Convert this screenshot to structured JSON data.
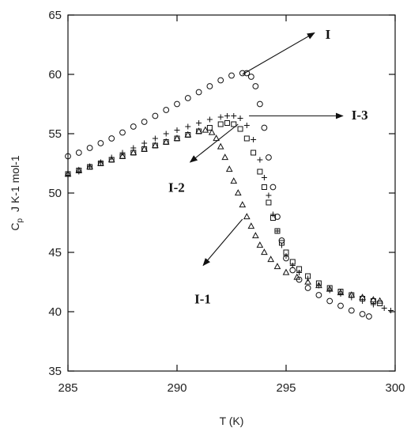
{
  "chart_data": {
    "type": "scatter",
    "xlabel": "T (K)",
    "ylabel_main": "C",
    "ylabel_sub": "p",
    "ylabel_units": "J K-1 mol-1",
    "xlim": [
      285,
      300
    ],
    "ylim": [
      35,
      65
    ],
    "xticks": [
      "285",
      "290",
      "295",
      "300"
    ],
    "yticks": [
      "35",
      "40",
      "45",
      "50",
      "55",
      "60",
      "65"
    ],
    "grid": false,
    "series": [
      {
        "name": "I",
        "marker": "circle",
        "x": [
          285.0,
          285.5,
          286.0,
          286.5,
          287.0,
          287.5,
          288.0,
          288.5,
          289.0,
          289.5,
          290.0,
          290.5,
          291.0,
          291.5,
          292.0,
          292.5,
          293.0,
          293.2,
          293.4,
          293.6,
          293.8,
          294.0,
          294.2,
          294.4,
          294.6,
          294.8,
          295.0,
          295.3,
          295.6,
          296.0,
          296.5,
          297.0,
          297.5,
          298.0,
          298.5,
          298.8
        ],
        "y": [
          53.1,
          53.4,
          53.8,
          54.2,
          54.6,
          55.1,
          55.6,
          56.0,
          56.5,
          57.0,
          57.5,
          58.0,
          58.5,
          59.0,
          59.5,
          59.9,
          60.1,
          60.1,
          59.8,
          59.0,
          57.5,
          55.5,
          53.0,
          50.5,
          48.0,
          46.0,
          44.5,
          43.5,
          42.7,
          42.0,
          41.4,
          40.9,
          40.5,
          40.1,
          39.8,
          39.6
        ]
      },
      {
        "name": "I-1",
        "marker": "triangle",
        "x": [
          285.0,
          285.5,
          286.0,
          286.5,
          287.0,
          287.5,
          288.0,
          288.5,
          289.0,
          289.5,
          290.0,
          290.5,
          291.0,
          291.3,
          291.6,
          291.8,
          292.0,
          292.2,
          292.4,
          292.6,
          292.8,
          293.0,
          293.2,
          293.4,
          293.6,
          293.8,
          294.0,
          294.3,
          294.6,
          295.0,
          295.5,
          296.0,
          296.5,
          297.0,
          297.5,
          298.0,
          298.5,
          299.0,
          299.3
        ],
        "y": [
          51.6,
          51.9,
          52.2,
          52.5,
          52.8,
          53.1,
          53.4,
          53.7,
          54.0,
          54.3,
          54.6,
          54.9,
          55.2,
          55.3,
          55.1,
          54.6,
          53.9,
          53.0,
          52.0,
          51.0,
          50.0,
          49.0,
          48.0,
          47.2,
          46.4,
          45.6,
          45.0,
          44.4,
          43.8,
          43.3,
          42.9,
          42.5,
          42.2,
          41.9,
          41.6,
          41.4,
          41.2,
          41.0,
          40.9
        ]
      },
      {
        "name": "I-2",
        "marker": "square",
        "x": [
          285.0,
          285.5,
          286.0,
          286.5,
          287.0,
          287.5,
          288.0,
          288.5,
          289.0,
          289.5,
          290.0,
          290.5,
          291.0,
          291.5,
          292.0,
          292.3,
          292.6,
          292.9,
          293.2,
          293.5,
          293.8,
          294.0,
          294.2,
          294.4,
          294.6,
          294.8,
          295.0,
          295.3,
          295.6,
          296.0,
          296.5,
          297.0,
          297.5,
          298.0,
          298.5,
          299.0,
          299.3
        ],
        "y": [
          51.6,
          51.9,
          52.2,
          52.5,
          52.8,
          53.1,
          53.4,
          53.7,
          54.0,
          54.3,
          54.6,
          54.9,
          55.2,
          55.5,
          55.8,
          55.9,
          55.8,
          55.4,
          54.6,
          53.4,
          51.8,
          50.5,
          49.2,
          47.9,
          46.8,
          45.8,
          45.0,
          44.2,
          43.6,
          43.0,
          42.4,
          42.0,
          41.7,
          41.4,
          41.1,
          40.9,
          40.7
        ]
      },
      {
        "name": "I-3",
        "marker": "plus",
        "x": [
          285.0,
          285.5,
          286.0,
          286.5,
          287.0,
          287.5,
          288.0,
          288.5,
          289.0,
          289.5,
          290.0,
          290.5,
          291.0,
          291.5,
          292.0,
          292.3,
          292.6,
          292.9,
          293.2,
          293.5,
          293.8,
          294.0,
          294.2,
          294.4,
          294.6,
          294.8,
          295.0,
          295.3,
          295.6,
          296.0,
          296.5,
          297.0,
          297.5,
          298.0,
          298.5,
          299.0,
          299.5,
          299.8
        ],
        "y": [
          51.5,
          51.8,
          52.2,
          52.6,
          53.0,
          53.4,
          53.8,
          54.2,
          54.6,
          55.0,
          55.3,
          55.6,
          55.9,
          56.2,
          56.4,
          56.5,
          56.5,
          56.3,
          55.7,
          54.5,
          52.8,
          51.3,
          49.8,
          48.2,
          46.8,
          45.6,
          44.7,
          43.9,
          43.3,
          42.8,
          42.2,
          41.8,
          41.5,
          41.2,
          40.9,
          40.6,
          40.3,
          40.1
        ]
      }
    ],
    "annotations": [
      {
        "label": "I",
        "from": [
          293.0,
          60.0
        ],
        "to": [
          296.3,
          63.5
        ],
        "text_at": [
          296.8,
          63.0
        ]
      },
      {
        "label": "I-3",
        "from": [
          293.3,
          56.5
        ],
        "to": [
          297.6,
          56.5
        ],
        "text_at": [
          298.0,
          56.2
        ]
      },
      {
        "label": "I-2",
        "from": [
          292.8,
          55.8
        ],
        "to": [
          290.6,
          52.6
        ],
        "text_at": [
          289.6,
          50.1
        ]
      },
      {
        "label": "I-1",
        "from": [
          293.0,
          47.8
        ],
        "to": [
          291.2,
          43.9
        ],
        "text_at": [
          290.8,
          40.7
        ]
      }
    ]
  }
}
